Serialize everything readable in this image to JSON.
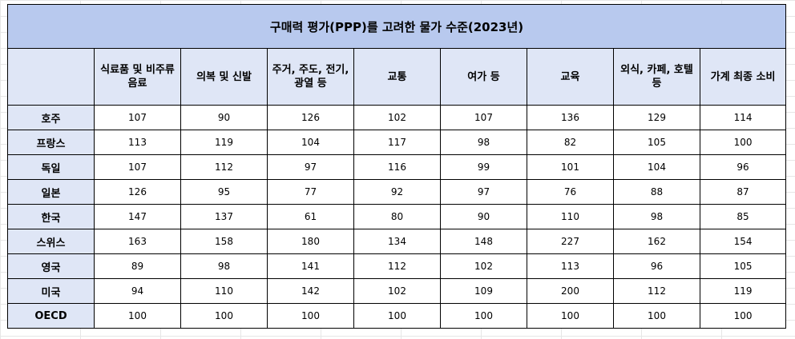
{
  "table": {
    "title": "구매력 평가(PPP)를 고려한 물가 수준(2023년)",
    "corner": "",
    "headers": [
      "식료품 및 비주류음료",
      "의복 및 신발",
      "주거, 주도, 전기, 광열 등",
      "교통",
      "여가 등",
      "교육",
      "외식, 카페, 호텔 등",
      "가계 최종 소비"
    ],
    "rows": [
      {
        "country": "호주",
        "values": [
          "107",
          "90",
          "126",
          "102",
          "107",
          "136",
          "129",
          "114"
        ]
      },
      {
        "country": "프랑스",
        "values": [
          "113",
          "119",
          "104",
          "117",
          "98",
          "82",
          "105",
          "100"
        ]
      },
      {
        "country": "독일",
        "values": [
          "107",
          "112",
          "97",
          "116",
          "99",
          "101",
          "104",
          "96"
        ]
      },
      {
        "country": "일본",
        "values": [
          "126",
          "95",
          "77",
          "92",
          "97",
          "76",
          "88",
          "87"
        ]
      },
      {
        "country": "한국",
        "values": [
          "147",
          "137",
          "61",
          "80",
          "90",
          "110",
          "98",
          "85"
        ]
      },
      {
        "country": "스위스",
        "values": [
          "163",
          "158",
          "180",
          "134",
          "148",
          "227",
          "162",
          "154"
        ]
      },
      {
        "country": "영국",
        "values": [
          "89",
          "98",
          "141",
          "112",
          "102",
          "113",
          "96",
          "105"
        ]
      },
      {
        "country": "미국",
        "values": [
          "94",
          "110",
          "142",
          "102",
          "109",
          "200",
          "112",
          "119"
        ]
      },
      {
        "country": "OECD",
        "values": [
          "100",
          "100",
          "100",
          "100",
          "100",
          "100",
          "100",
          "100"
        ]
      }
    ]
  },
  "colors": {
    "title_fill": "#b8c9ee",
    "header_fill": "#dfe6f6",
    "border": "#000000"
  }
}
